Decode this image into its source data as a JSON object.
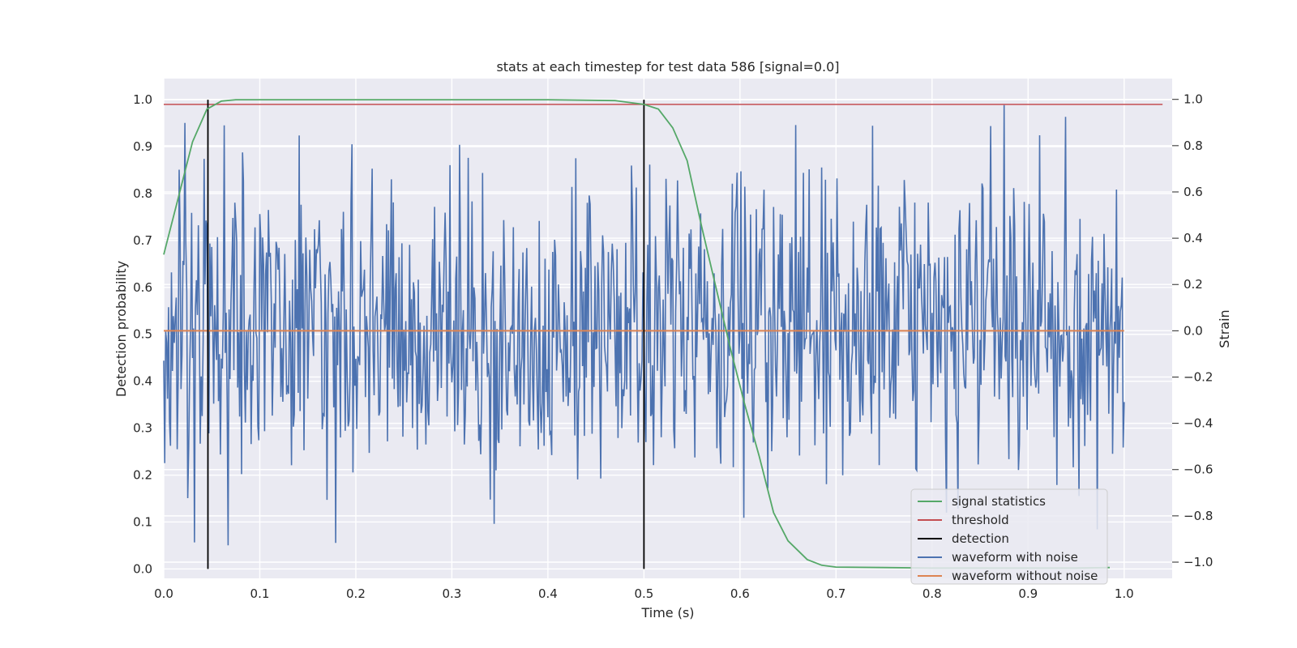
{
  "chart_data": {
    "type": "line",
    "title": "stats at each timestep for test data 586 [signal=0.0]",
    "xlabel": "Time (s)",
    "ylabel": "Detection probability",
    "y2label": "Strain",
    "xlim": [
      0.0,
      1.05
    ],
    "ylim": [
      -0.02,
      1.045
    ],
    "y2lim": [
      -1.07,
      1.09
    ],
    "x_ticks": [
      "0.0",
      "0.1",
      "0.2",
      "0.3",
      "0.4",
      "0.5",
      "0.6",
      "0.7",
      "0.8",
      "0.9",
      "1.0"
    ],
    "y_ticks": [
      "0.0",
      "0.1",
      "0.2",
      "0.3",
      "0.4",
      "0.5",
      "0.6",
      "0.7",
      "0.8",
      "0.9",
      "1.0"
    ],
    "y2_ticks": [
      "−1.0",
      "−0.8",
      "−0.6",
      "−0.4",
      "−0.2",
      "0.0",
      "0.2",
      "0.4",
      "0.6",
      "0.8",
      "1.0"
    ],
    "grid": true,
    "legend_position": "lower-right",
    "colors": {
      "signal": "#55a868",
      "threshold": "#c44e52",
      "detection": "#000000",
      "noisy": "#4c72b0",
      "clean": "#dd8452",
      "plot_bg": "#eaeaf2",
      "grid": "#ffffff"
    },
    "series": [
      {
        "name": "signal statistics",
        "axis": "left",
        "x": [
          0.0,
          0.015,
          0.03,
          0.045,
          0.06,
          0.075,
          0.1,
          0.2,
          0.3,
          0.4,
          0.47,
          0.5,
          0.515,
          0.53,
          0.545,
          0.56,
          0.575,
          0.59,
          0.605,
          0.62,
          0.635,
          0.65,
          0.67,
          0.685,
          0.7,
          0.75,
          0.8,
          0.85,
          0.9,
          0.95,
          0.985
        ],
        "y": [
          0.67,
          0.79,
          0.91,
          0.98,
          0.997,
          1.0,
          1.0,
          1.0,
          1.0,
          1.0,
          0.998,
          0.99,
          0.98,
          0.94,
          0.87,
          0.73,
          0.6,
          0.47,
          0.35,
          0.24,
          0.12,
          0.06,
          0.02,
          0.008,
          0.004,
          0.003,
          0.002,
          0.002,
          0.002,
          0.002,
          0.003
        ]
      },
      {
        "name": "threshold",
        "axis": "left",
        "x": [
          0.0,
          1.04
        ],
        "y": [
          0.99,
          0.99
        ]
      },
      {
        "name": "detection",
        "axis": "left",
        "x_positions": [
          0.046,
          0.5
        ],
        "y": [
          0.0,
          1.0
        ]
      },
      {
        "name": "waveform with noise",
        "axis": "right",
        "x": [
          0.0,
          1.0
        ],
        "sample_count": 1000,
        "noise_sigma": 0.33,
        "strain_range": [
          -1.0,
          1.0
        ]
      },
      {
        "name": "waveform without noise",
        "axis": "right",
        "x": [
          0.0,
          1.0
        ],
        "y": [
          0.0,
          0.0
        ]
      }
    ],
    "legend": [
      "signal statistics",
      "threshold",
      "detection",
      "waveform with noise",
      "waveform without noise"
    ]
  }
}
